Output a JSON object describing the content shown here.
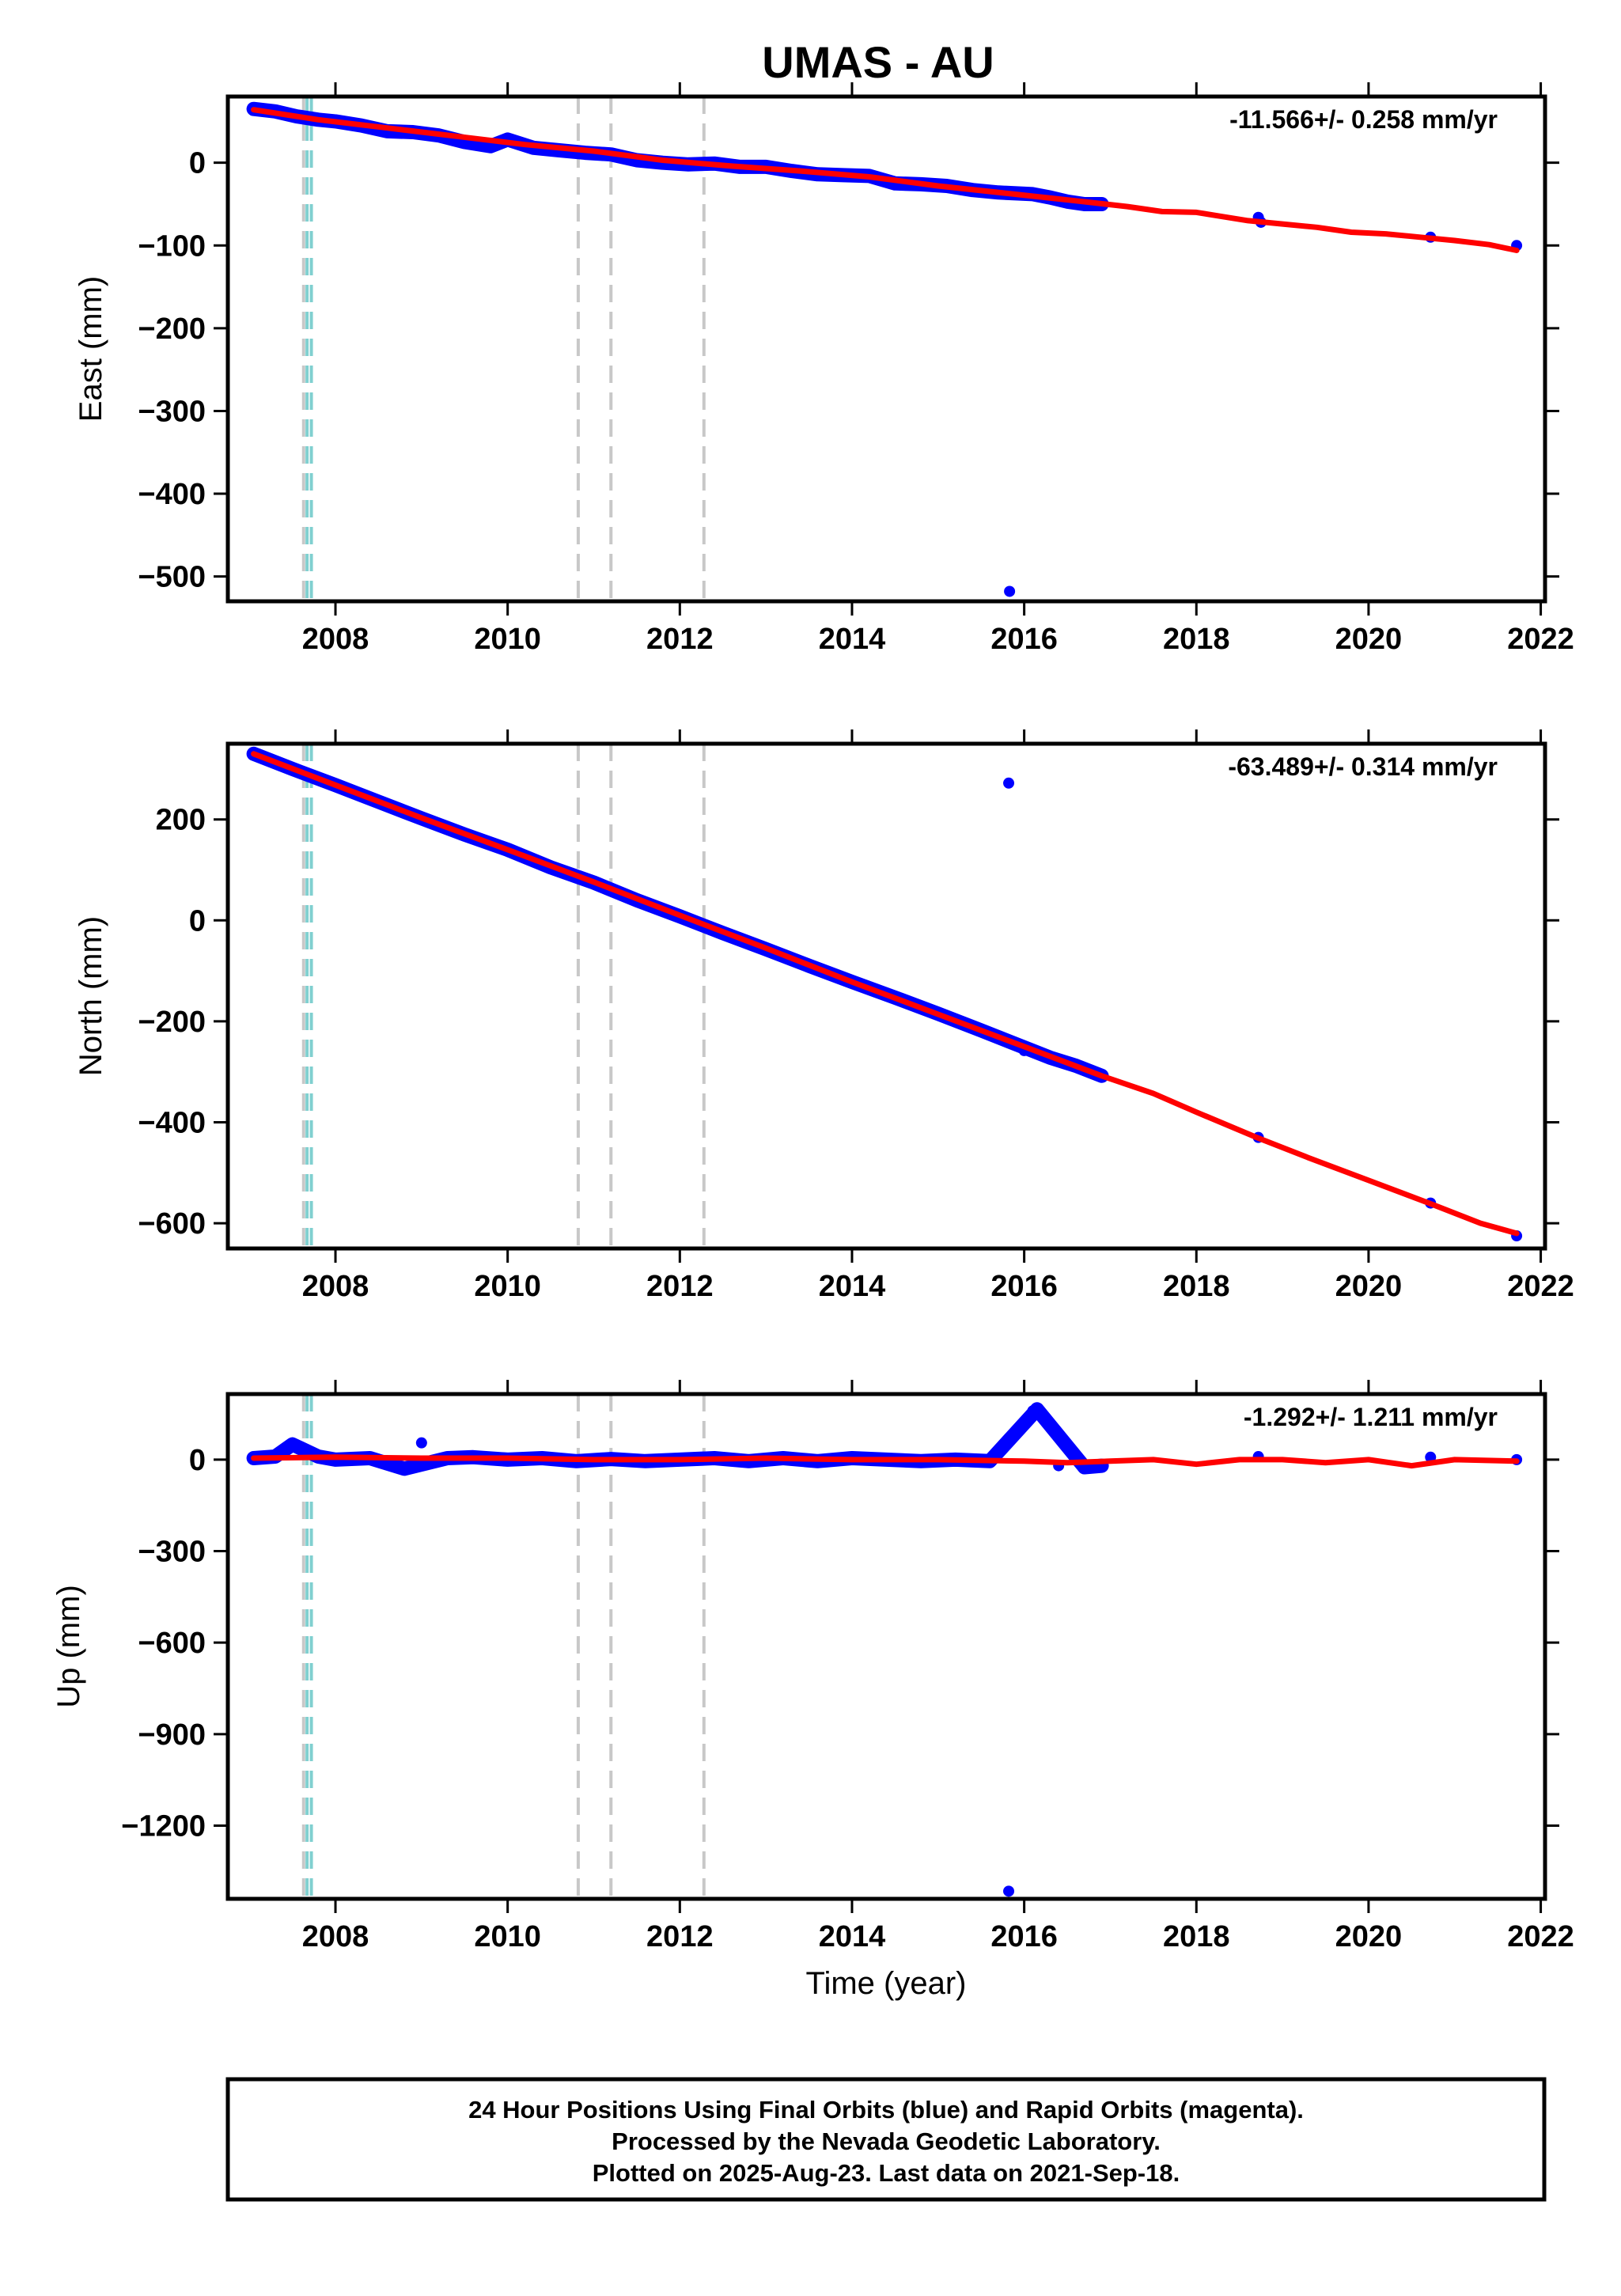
{
  "title": "UMAS - AU",
  "xlabel": "Time (year)",
  "footer": {
    "line1": "24 Hour Positions Using Final Orbits (blue) and Rapid Orbits (magenta).",
    "line2": "Processed by the Nevada Geodetic Laboratory.",
    "line3": "Plotted on 2025-Aug-23. Last data on 2021-Sep-18."
  },
  "colors": {
    "final_orbits": "#0000ff",
    "model_fit": "#ff0000",
    "equipment_change": "#c8c8c8",
    "earthquake": "#80d0d0",
    "frame": "#000000"
  },
  "chart_data": [
    {
      "type": "scatter",
      "component": "east",
      "ylabel": "East (mm)",
      "rate_label": "-11.566+/- 0.258 mm/yr",
      "xlim": [
        2006.75,
        2022.05
      ],
      "ylim": [
        -530,
        80
      ],
      "xticks": [
        2008,
        2010,
        2012,
        2014,
        2016,
        2018,
        2020,
        2022
      ],
      "yticks": [
        0,
        -100,
        -200,
        -300,
        -400,
        -500
      ],
      "steps_gray": [
        2007.63,
        2010.82,
        2011.2,
        2012.28
      ],
      "steps_cyan": [
        2007.67,
        2007.72
      ],
      "series": [
        {
          "name": "Final Orbits (blue)",
          "x": [
            2007.05,
            2007.3,
            2007.55,
            2007.8,
            2008.0,
            2008.3,
            2008.6,
            2008.9,
            2009.2,
            2009.5,
            2009.8,
            2010.0,
            2010.3,
            2010.6,
            2010.9,
            2011.2,
            2011.5,
            2011.8,
            2012.1,
            2012.4,
            2012.7,
            2013.0,
            2013.3,
            2013.6,
            2013.9,
            2014.2,
            2014.5,
            2014.8,
            2015.1,
            2015.4,
            2015.7,
            2015.83,
            2016.1,
            2016.3,
            2016.5,
            2016.7,
            2016.9,
            2018.72,
            2018.75,
            2020.72,
            2021.72
          ],
          "y": [
            65,
            62,
            56,
            52,
            50,
            45,
            38,
            37,
            33,
            25,
            20,
            28,
            18,
            15,
            12,
            10,
            3,
            0,
            -2,
            -1,
            -5,
            -5,
            -10,
            -14,
            -15,
            -16,
            -25,
            -26,
            -28,
            -33,
            -36,
            -518,
            -38,
            -42,
            -47,
            -50,
            -50,
            -66,
            -72,
            -90,
            -100
          ]
        },
        {
          "name": "Model fit",
          "x": [
            2007.05,
            2007.8,
            2008.6,
            2009.4,
            2010.2,
            2011.0,
            2011.8,
            2012.6,
            2013.4,
            2014.2,
            2015.0,
            2015.8,
            2016.6,
            2017.2,
            2017.6,
            2018.0,
            2018.3,
            2018.6,
            2019.0,
            2019.4,
            2019.8,
            2020.2,
            2020.6,
            2021.0,
            2021.4,
            2021.72
          ],
          "y": [
            64,
            52,
            42,
            32,
            22,
            14,
            3,
            -4,
            -10,
            -17,
            -28,
            -37,
            -46,
            -53,
            -59,
            -60,
            -65,
            -70,
            -74,
            -78,
            -84,
            -86,
            -90,
            -94,
            -99,
            -106
          ]
        }
      ]
    },
    {
      "type": "scatter",
      "component": "north",
      "ylabel": "North (mm)",
      "rate_label": "-63.489+/- 0.314 mm/yr",
      "xlim": [
        2006.75,
        2022.05
      ],
      "ylim": [
        -650,
        350
      ],
      "xticks": [
        2008,
        2010,
        2012,
        2014,
        2016,
        2018,
        2020,
        2022
      ],
      "yticks": [
        200,
        0,
        -200,
        -400,
        -600
      ],
      "steps_gray": [
        2007.63,
        2010.82,
        2011.2,
        2012.28
      ],
      "steps_cyan": [
        2007.67,
        2007.72
      ],
      "series": [
        {
          "name": "Final Orbits (blue)",
          "x": [
            2007.05,
            2007.5,
            2008.0,
            2008.5,
            2009.0,
            2009.5,
            2010.0,
            2010.5,
            2011.0,
            2011.5,
            2012.0,
            2012.5,
            2013.0,
            2013.5,
            2014.0,
            2014.5,
            2015.0,
            2015.5,
            2015.82,
            2016.0,
            2016.3,
            2016.6,
            2016.9,
            2018.72,
            2020.72,
            2021.72
          ],
          "y": [
            330,
            300,
            268,
            235,
            202,
            170,
            140,
            105,
            75,
            40,
            8,
            -25,
            -57,
            -90,
            -122,
            -153,
            -185,
            -218,
            272,
            -258,
            -272,
            -288,
            -308,
            -430,
            -560,
            -625
          ]
        },
        {
          "name": "Model fit",
          "x": [
            2007.05,
            2008.0,
            2009.0,
            2010.0,
            2011.0,
            2012.0,
            2013.0,
            2014.0,
            2015.0,
            2016.0,
            2016.9,
            2017.5,
            2018.0,
            2018.7,
            2019.3,
            2020.0,
            2020.7,
            2021.3,
            2021.72
          ],
          "y": [
            330,
            268,
            203,
            140,
            76,
            10,
            -55,
            -122,
            -186,
            -250,
            -308,
            -343,
            -380,
            -430,
            -470,
            -515,
            -560,
            -600,
            -620
          ]
        }
      ]
    },
    {
      "type": "scatter",
      "component": "up",
      "ylabel": "Up (mm)",
      "rate_label": "-1.292+/- 1.211 mm/yr",
      "xlim": [
        2006.75,
        2022.05
      ],
      "ylim": [
        -1440,
        215
      ],
      "xticks": [
        2008,
        2010,
        2012,
        2014,
        2016,
        2018,
        2020,
        2022
      ],
      "yticks": [
        0,
        -300,
        -600,
        -900,
        -1200
      ],
      "steps_gray": [
        2007.63,
        2010.82,
        2011.2,
        2012.28
      ],
      "steps_cyan": [
        2007.67,
        2007.72
      ],
      "series": [
        {
          "name": "Final Orbits (blue)",
          "x": [
            2007.05,
            2007.3,
            2007.5,
            2007.8,
            2008.0,
            2008.4,
            2008.8,
            2009.0,
            2009.3,
            2009.6,
            2010.0,
            2010.4,
            2010.8,
            2011.2,
            2011.6,
            2012.0,
            2012.4,
            2012.8,
            2013.2,
            2013.6,
            2014.0,
            2014.4,
            2014.8,
            2015.2,
            2015.6,
            2015.82,
            2016.1,
            2016.15,
            2016.4,
            2016.7,
            2016.9,
            2018.72,
            2020.72,
            2021.72
          ],
          "y": [
            5,
            10,
            50,
            10,
            0,
            5,
            -30,
            55,
            5,
            8,
            0,
            5,
            -5,
            2,
            -5,
            0,
            5,
            -5,
            5,
            -5,
            5,
            0,
            -5,
            0,
            -5,
            -1415,
            160,
            165,
            -20,
            -25,
            -20,
            10,
            8,
            0
          ]
        },
        {
          "name": "Model fit",
          "x": [
            2007.05,
            2008.0,
            2009.0,
            2010.0,
            2011.0,
            2012.0,
            2013.0,
            2014.0,
            2015.0,
            2016.0,
            2016.5,
            2017.0,
            2017.5,
            2018.0,
            2018.5,
            2019.0,
            2019.5,
            2020.0,
            2020.5,
            2021.0,
            2021.72
          ],
          "y": [
            5,
            8,
            5,
            5,
            0,
            0,
            5,
            0,
            0,
            -5,
            -10,
            -5,
            0,
            -15,
            0,
            0,
            -10,
            0,
            -20,
            0,
            -5
          ]
        }
      ]
    }
  ]
}
